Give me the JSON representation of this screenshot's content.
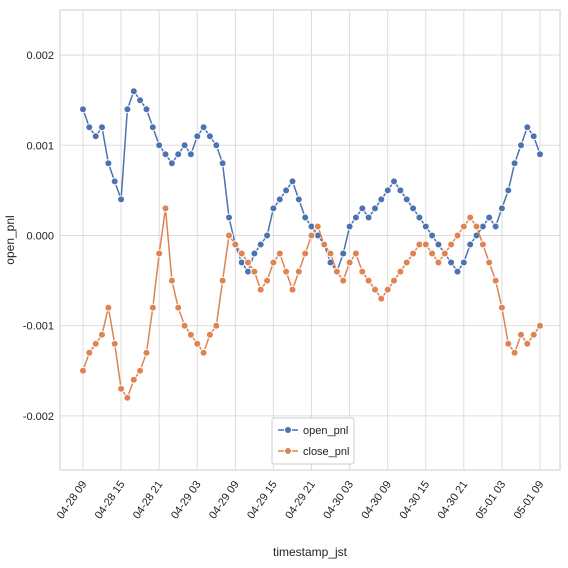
{
  "chart_data": {
    "type": "line",
    "title": "",
    "xlabel": "timestamp_jst",
    "ylabel": "open_pnl",
    "x_ticks": [
      "04-28 09",
      "04-28 15",
      "04-28 21",
      "04-29 03",
      "04-29 09",
      "04-29 15",
      "04-29 21",
      "04-30 03",
      "04-30 09",
      "04-30 15",
      "04-30 21",
      "05-01 03",
      "05-01 09"
    ],
    "y_ticks": [
      "-0.002",
      "-0.001",
      "0.000",
      "0.001",
      "0.002"
    ],
    "ylim": [
      -0.0026,
      0.0025
    ],
    "grid": true,
    "legend_position": "lower-center",
    "series": [
      {
        "name": "open_pnl",
        "color": "#4c72b0",
        "x": [
          0,
          1,
          2,
          3,
          4,
          5,
          6,
          7,
          8,
          9,
          10,
          11,
          12,
          13,
          14,
          15,
          16,
          17,
          18,
          19,
          20,
          21,
          22,
          23,
          24,
          25,
          26,
          27,
          28,
          29,
          30,
          31,
          32,
          33,
          34,
          35,
          36,
          37,
          38,
          39,
          40,
          41,
          42,
          43,
          44,
          45,
          46,
          47,
          48,
          49,
          50,
          51,
          52,
          53,
          54,
          55,
          56,
          57,
          58,
          59,
          60,
          61,
          62,
          63,
          64,
          65,
          66,
          67,
          68,
          69,
          70,
          71,
          72
        ],
        "values": [
          0.0014,
          0.0012,
          0.0011,
          0.0012,
          0.0008,
          0.0006,
          0.0004,
          0.0014,
          0.0016,
          0.0015,
          0.0014,
          0.0012,
          0.001,
          0.0009,
          0.0008,
          0.0009,
          0.001,
          0.0009,
          0.0011,
          0.0012,
          0.0011,
          0.001,
          0.0008,
          0.0002,
          -0.0001,
          -0.0003,
          -0.0004,
          -0.0002,
          -0.0001,
          0.0,
          0.0003,
          0.0004,
          0.0005,
          0.0006,
          0.0004,
          0.0002,
          0.0001,
          0.0,
          -0.0001,
          -0.0003,
          -0.0004,
          -0.0002,
          0.0001,
          0.0002,
          0.0003,
          0.0002,
          0.0003,
          0.0004,
          0.0005,
          0.0006,
          0.0005,
          0.0004,
          0.0003,
          0.0002,
          0.0001,
          0.0,
          -0.0001,
          -0.0002,
          -0.0003,
          -0.0004,
          -0.0003,
          -0.0001,
          0.0,
          0.0001,
          0.0002,
          0.0001,
          0.0003,
          0.0005,
          0.0008,
          0.001,
          0.0012,
          0.0011,
          0.0009
        ]
      },
      {
        "name": "close_pnl",
        "color": "#dd8452",
        "x": [
          0,
          1,
          2,
          3,
          4,
          5,
          6,
          7,
          8,
          9,
          10,
          11,
          12,
          13,
          14,
          15,
          16,
          17,
          18,
          19,
          20,
          21,
          22,
          23,
          24,
          25,
          26,
          27,
          28,
          29,
          30,
          31,
          32,
          33,
          34,
          35,
          36,
          37,
          38,
          39,
          40,
          41,
          42,
          43,
          44,
          45,
          46,
          47,
          48,
          49,
          50,
          51,
          52,
          53,
          54,
          55,
          56,
          57,
          58,
          59,
          60,
          61,
          62,
          63,
          64,
          65,
          66,
          67,
          68,
          69,
          70,
          71,
          72
        ],
        "values": [
          -0.0015,
          -0.0013,
          -0.0012,
          -0.0011,
          -0.0008,
          -0.0012,
          -0.0017,
          -0.0018,
          -0.0016,
          -0.0015,
          -0.0013,
          -0.0008,
          -0.0002,
          0.0003,
          -0.0005,
          -0.0008,
          -0.001,
          -0.0011,
          -0.0012,
          -0.0013,
          -0.0011,
          -0.001,
          -0.0005,
          0.0,
          -0.0001,
          -0.0002,
          -0.0003,
          -0.0004,
          -0.0006,
          -0.0005,
          -0.0003,
          -0.0002,
          -0.0004,
          -0.0006,
          -0.0004,
          -0.0002,
          0.0,
          0.0001,
          -0.0001,
          -0.0002,
          -0.0004,
          -0.0005,
          -0.0003,
          -0.0002,
          -0.0004,
          -0.0005,
          -0.0006,
          -0.0007,
          -0.0006,
          -0.0005,
          -0.0004,
          -0.0003,
          -0.0002,
          -0.0001,
          -0.0001,
          -0.0002,
          -0.0003,
          -0.0002,
          -0.0001,
          0.0,
          0.0001,
          0.0002,
          0.0001,
          -0.0001,
          -0.0003,
          -0.0005,
          -0.0008,
          -0.0012,
          -0.0013,
          -0.0011,
          -0.0012,
          -0.0011,
          -0.001
        ]
      }
    ]
  }
}
